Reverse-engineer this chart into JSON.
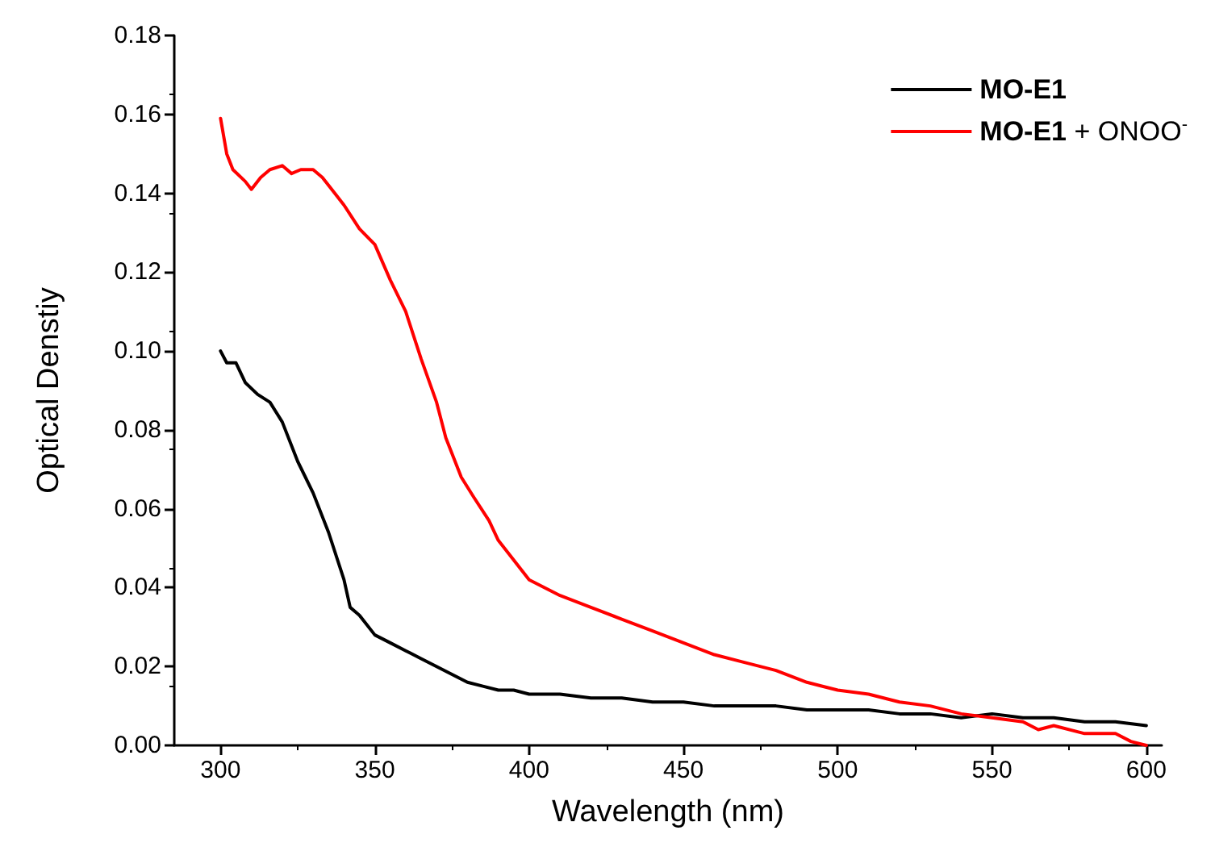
{
  "chart_data": {
    "type": "line",
    "xlabel": "Wavelength (nm)",
    "ylabel": "Optical Denstiy",
    "xlim": [
      285,
      605
    ],
    "xticks": [
      300,
      350,
      400,
      450,
      500,
      550,
      600
    ],
    "ylim": [
      0,
      0.18
    ],
    "yticks": [
      {
        "value": 0,
        "label": "0.00"
      },
      0.02,
      0.04,
      0.06,
      0.08,
      {
        "value": 0.1,
        "label": "0.10"
      },
      0.12,
      0.14,
      0.16,
      0.18
    ],
    "grid": false,
    "legend": "top right",
    "marker": "none",
    "line_style": "solid",
    "series": [
      {
        "name": "MO-E1",
        "color": "#000000",
        "x": [
          300,
          302,
          305,
          308,
          312,
          316,
          320,
          325,
          330,
          335,
          340,
          342,
          345,
          350,
          355,
          360,
          365,
          370,
          375,
          380,
          385,
          390,
          395,
          400,
          410,
          420,
          430,
          440,
          450,
          460,
          470,
          480,
          490,
          500,
          510,
          520,
          530,
          540,
          550,
          560,
          570,
          580,
          590,
          600
        ],
        "values": [
          0.1,
          0.097,
          0.097,
          0.092,
          0.089,
          0.087,
          0.082,
          0.072,
          0.064,
          0.054,
          0.042,
          0.035,
          0.033,
          0.028,
          0.026,
          0.024,
          0.022,
          0.02,
          0.018,
          0.016,
          0.015,
          0.014,
          0.014,
          0.013,
          0.013,
          0.012,
          0.012,
          0.011,
          0.011,
          0.01,
          0.01,
          0.01,
          0.009,
          0.009,
          0.009,
          0.008,
          0.008,
          0.007,
          0.008,
          0.007,
          0.007,
          0.006,
          0.006,
          0.005
        ]
      },
      {
        "name": "MO-E1 + ONOO$^{-}$",
        "color": "#ff0000",
        "x": [
          300,
          302,
          304,
          308,
          310,
          313,
          316,
          320,
          323,
          326,
          330,
          333,
          337,
          340,
          345,
          350,
          355,
          360,
          365,
          370,
          373,
          378,
          382,
          387,
          390,
          395,
          400,
          410,
          420,
          430,
          440,
          450,
          460,
          470,
          480,
          490,
          500,
          510,
          520,
          530,
          540,
          550,
          560,
          565,
          570,
          580,
          590,
          595,
          600
        ],
        "values": [
          0.159,
          0.15,
          0.146,
          0.143,
          0.141,
          0.144,
          0.146,
          0.147,
          0.145,
          0.146,
          0.146,
          0.144,
          0.14,
          0.137,
          0.131,
          0.127,
          0.118,
          0.11,
          0.098,
          0.087,
          0.078,
          0.068,
          0.063,
          0.057,
          0.052,
          0.047,
          0.042,
          0.038,
          0.035,
          0.032,
          0.029,
          0.026,
          0.023,
          0.021,
          0.019,
          0.016,
          0.014,
          0.013,
          0.011,
          0.01,
          0.008,
          0.007,
          0.006,
          0.004,
          0.005,
          0.003,
          0.003,
          0.001,
          0
        ]
      }
    ]
  }
}
